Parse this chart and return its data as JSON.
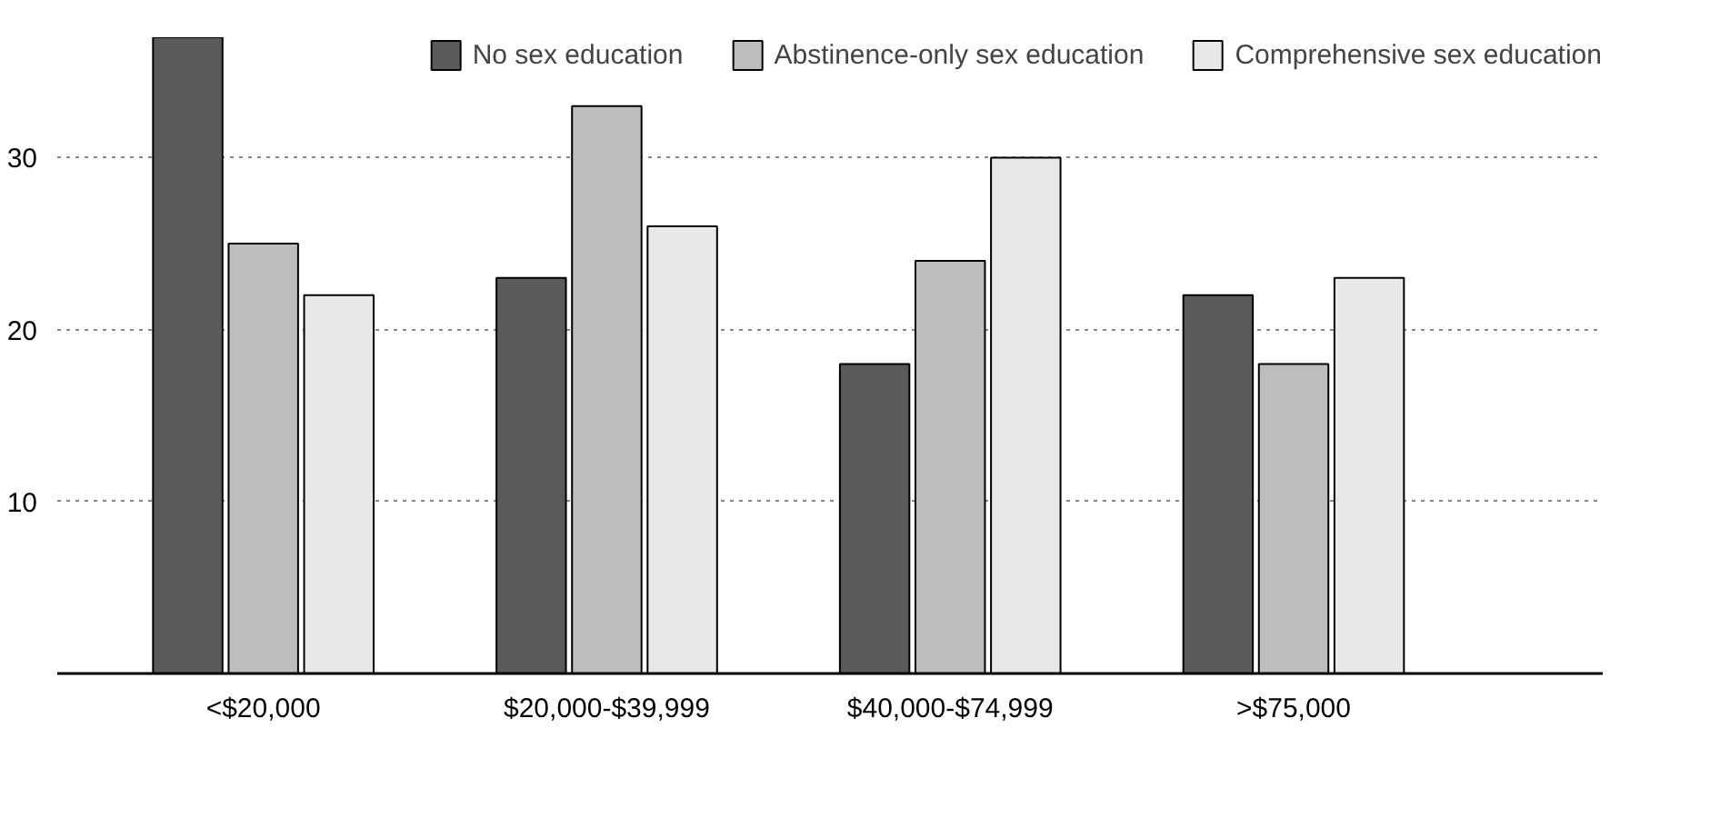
{
  "chart_data": {
    "type": "bar",
    "categories": [
      "<$20,000",
      "$20,000-$39,999",
      "$40,000-$74,999",
      ">$75,000"
    ],
    "series": [
      {
        "name": "No sex education",
        "color": "#5a5a5a",
        "values": [
          37,
          23,
          18,
          22
        ]
      },
      {
        "name": "Abstinence-only sex education",
        "color": "#bdbdbd",
        "values": [
          25,
          33,
          24,
          18
        ]
      },
      {
        "name": "Comprehensive sex education",
        "color": "#e8e8e8",
        "values": [
          22,
          26,
          30,
          23
        ]
      }
    ],
    "ylim": [
      0,
      37
    ],
    "yticks": [
      {
        "value": 0,
        "label": null
      },
      10,
      20,
      30
    ],
    "grid": "y",
    "legend": "top right"
  }
}
